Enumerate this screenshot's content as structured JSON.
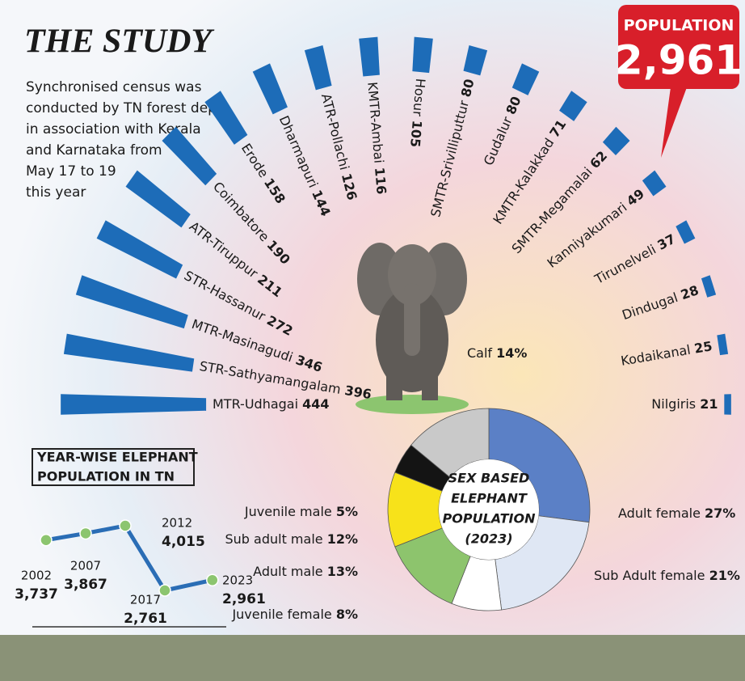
{
  "title": "THE STUDY",
  "description": [
    "Synchronised census was",
    "conducted by TN forest dept",
    "in association with Kerala",
    "and Karnataka from",
    "May 17 to 19",
    "this year"
  ],
  "badge": {
    "label": "POPULATION",
    "value": "2,961"
  },
  "chart_data": [
    {
      "type": "radial_bar",
      "color": "#1d6cb8",
      "categories": [
        "MTR-Udhagai",
        "STR-Sathyamangalam",
        "MTR-Masinagudi",
        "STR-Hassanur",
        "ATR-Tiruppur",
        "Coimbatore",
        "Erode",
        "Dharmapuri",
        "ATR-Pollachi",
        "KMTR-Ambai",
        "Hosur",
        "SMTR-Srivilliputtur",
        "Gudalur",
        "KMTR-Kalakkad",
        "SMTR-Megamalai",
        "Kanniyakumari",
        "Tirunelveli",
        "Dindugal",
        "Kodaikanal",
        "Nilgiris"
      ],
      "values": [
        444,
        396,
        346,
        272,
        211,
        190,
        158,
        144,
        126,
        116,
        105,
        80,
        80,
        71,
        62,
        49,
        37,
        28,
        25,
        21
      ]
    },
    {
      "type": "line",
      "title": [
        "YEAR-WISE ELEPHANT",
        "POPULATION IN TN"
      ],
      "color": "#2a6db5",
      "marker_color": "#8cc56f",
      "x": [
        2002,
        2007,
        2012,
        2017,
        2023
      ],
      "values": [
        3737,
        3867,
        4015,
        2761,
        2961
      ],
      "value_labels": [
        "3,737",
        "3,867",
        "4,015",
        "2,761",
        "2,961"
      ]
    },
    {
      "type": "donut",
      "title": [
        "SEX BASED",
        "ELEPHANT",
        "POPULATION",
        "(2023)"
      ],
      "categories": [
        "Adult female",
        "Sub Adult female",
        "Juvenile female",
        "Adult male",
        "Sub adult male",
        "Juvenile male",
        "Calf"
      ],
      "values": [
        27,
        21,
        8,
        13,
        12,
        5,
        14
      ],
      "value_labels": [
        "27%",
        "21%",
        "8%",
        "13%",
        "12%",
        "5%",
        "14%"
      ],
      "colors": [
        "#5b80c6",
        "#dfe7f4",
        "#ffffff",
        "#8dc46d",
        "#f7e21a",
        "#141414",
        "#c9c9c9"
      ]
    }
  ]
}
